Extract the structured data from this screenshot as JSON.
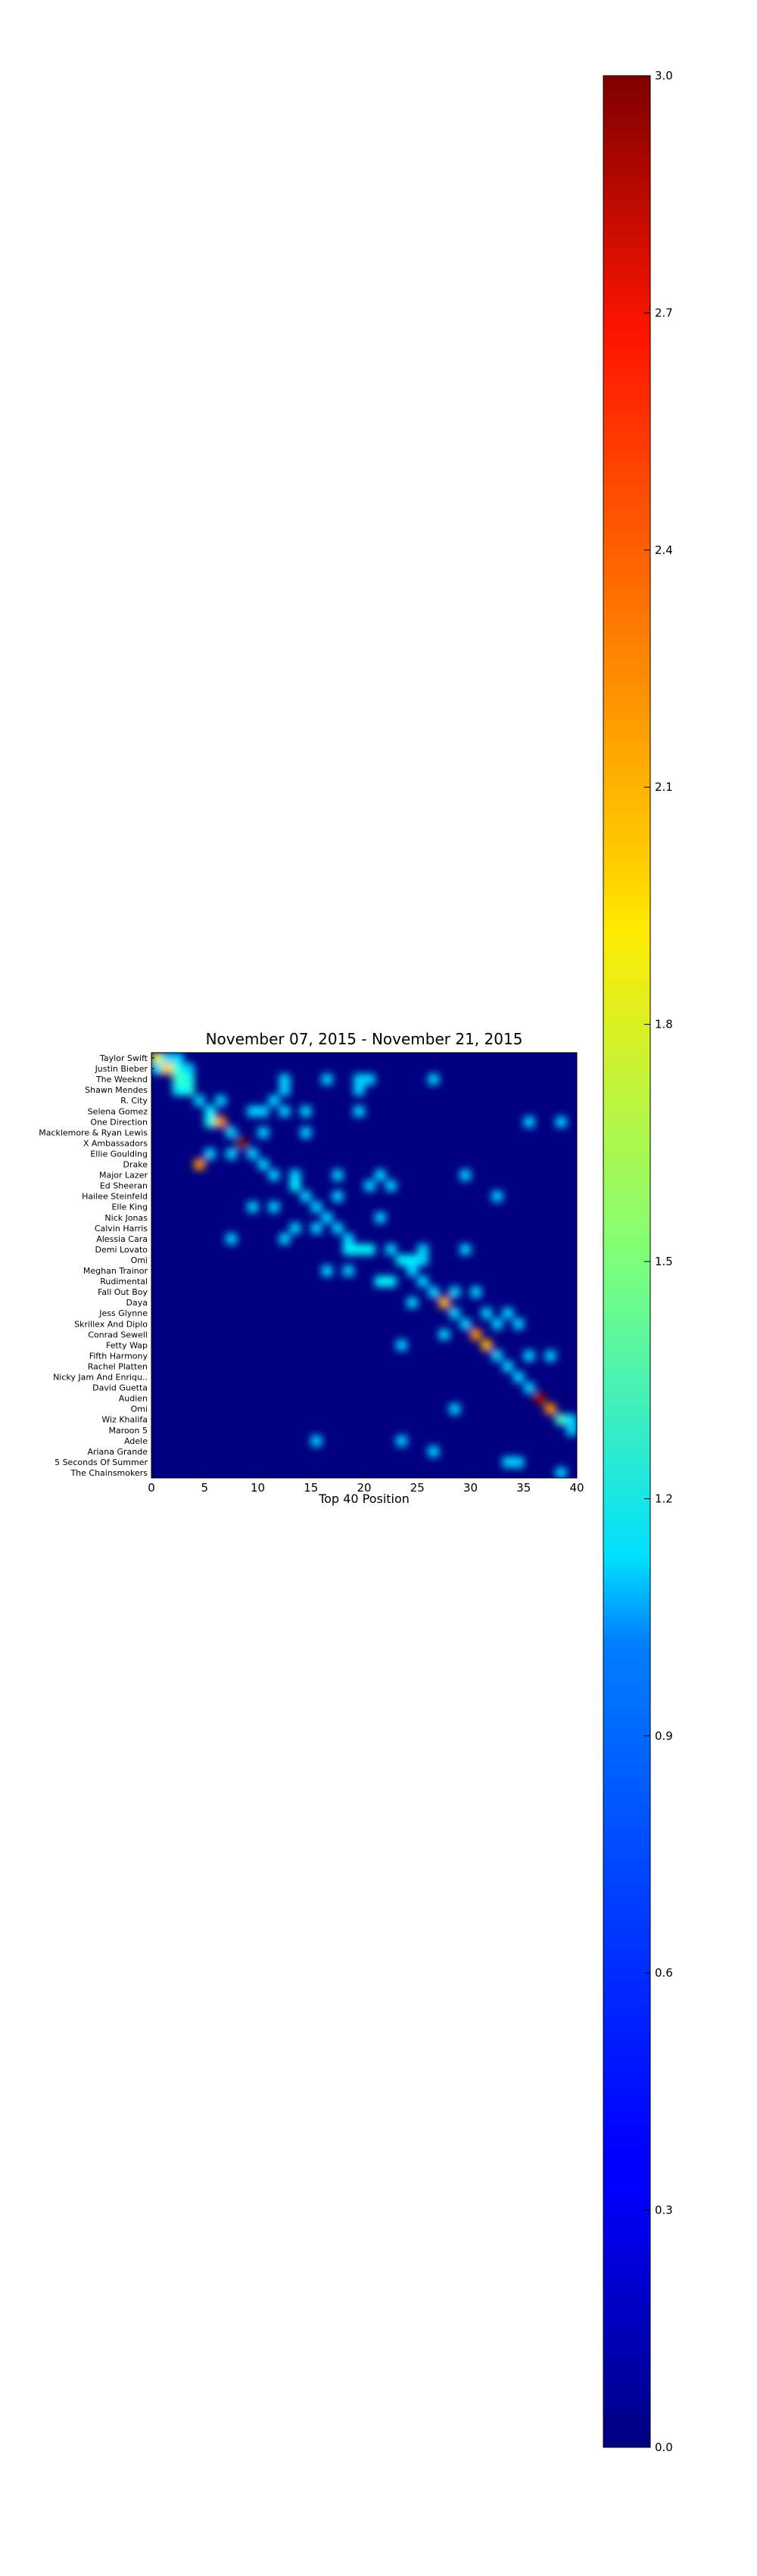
{
  "chart_data": {
    "type": "heatmap",
    "title": "November 07, 2015 - November 21, 2015",
    "xlabel": "Top 40 Position",
    "ylabel": "",
    "x_ticks": [
      0,
      5,
      10,
      15,
      20,
      25,
      30,
      35,
      40
    ],
    "xlim": [
      0,
      40
    ],
    "colorbar": {
      "ticks": [
        "0.0",
        "0.3",
        "0.6",
        "0.9",
        "1.2",
        "1.5",
        "1.8",
        "2.1",
        "2.4",
        "2.7",
        "3.0"
      ],
      "range": [
        0,
        3
      ],
      "colormap": "jet"
    },
    "artists": [
      "Taylor Swift",
      "Justin Bieber",
      "The Weeknd",
      "Shawn Mendes",
      "R. City",
      "Selena Gomez",
      "One Direction",
      "Macklemore & Ryan Lewis",
      "X Ambassadors",
      "Ellie Goulding",
      "Drake",
      "Major Lazer",
      "Ed Sheeran",
      "Hailee Steinfeld",
      "Elle King",
      "Nick Jonas",
      "Calvin Harris",
      "Alessia Cara",
      "Demi Lovato",
      "Omi",
      "Meghan Trainor",
      "Rudimental",
      "Fall Out Boy",
      "Daya",
      "Jess Glynne",
      "Skrillex And Diplo",
      "Conrad Sewell",
      "Fetty Wap",
      "Fifth Harmony",
      "Rachel Platten",
      "Nicky Jam And Enriqu..",
      "David Guetta",
      "Audien",
      "Omi",
      "Wiz Khalifa",
      "Maroon 5",
      "Adele",
      "Ariana Grande",
      "5 Seconds Of Summer",
      "The Chainsmokers"
    ],
    "cells": [
      [
        0,
        0,
        1.8
      ],
      [
        0,
        1,
        1.0
      ],
      [
        0,
        2,
        1.0
      ],
      [
        1,
        0,
        1.0
      ],
      [
        1,
        1,
        2.0
      ],
      [
        1,
        2,
        1.2
      ],
      [
        1,
        3,
        1.0
      ],
      [
        2,
        2,
        1.3
      ],
      [
        2,
        3,
        1.2
      ],
      [
        2,
        12,
        1.0
      ],
      [
        2,
        16,
        1.0
      ],
      [
        2,
        19,
        1.0
      ],
      [
        2,
        20,
        1.0
      ],
      [
        2,
        26,
        1.0
      ],
      [
        3,
        2,
        1.1
      ],
      [
        3,
        3,
        1.2
      ],
      [
        3,
        12,
        1.0
      ],
      [
        3,
        19,
        1.0
      ],
      [
        4,
        4,
        1.0
      ],
      [
        4,
        6,
        1.0
      ],
      [
        4,
        11,
        1.0
      ],
      [
        5,
        5,
        1.1
      ],
      [
        5,
        9,
        1.0
      ],
      [
        5,
        10,
        1.0
      ],
      [
        5,
        12,
        1.0
      ],
      [
        5,
        14,
        1.0
      ],
      [
        5,
        19,
        1.0
      ],
      [
        6,
        5,
        1.2
      ],
      [
        6,
        6,
        2.2
      ],
      [
        6,
        35,
        1.0
      ],
      [
        6,
        38,
        1.0
      ],
      [
        7,
        7,
        1.0
      ],
      [
        7,
        10,
        1.0
      ],
      [
        7,
        14,
        1.0
      ],
      [
        8,
        8,
        3.0
      ],
      [
        9,
        5,
        1.0
      ],
      [
        9,
        7,
        1.0
      ],
      [
        9,
        9,
        1.0
      ],
      [
        10,
        4,
        2.2
      ],
      [
        10,
        10,
        1.0
      ],
      [
        11,
        11,
        1.0
      ],
      [
        11,
        13,
        1.0
      ],
      [
        11,
        17,
        1.0
      ],
      [
        11,
        21,
        1.0
      ],
      [
        11,
        29,
        1.0
      ],
      [
        12,
        13,
        1.1
      ],
      [
        12,
        20,
        1.0
      ],
      [
        12,
        22,
        1.0
      ],
      [
        13,
        14,
        1.0
      ],
      [
        13,
        17,
        1.0
      ],
      [
        13,
        32,
        1.0
      ],
      [
        14,
        9,
        1.0
      ],
      [
        14,
        11,
        1.0
      ],
      [
        14,
        15,
        1.0
      ],
      [
        15,
        16,
        1.0
      ],
      [
        15,
        21,
        1.0
      ],
      [
        16,
        13,
        1.0
      ],
      [
        16,
        15,
        1.0
      ],
      [
        16,
        17,
        1.0
      ],
      [
        17,
        7,
        1.0
      ],
      [
        17,
        12,
        1.0
      ],
      [
        17,
        18,
        1.0
      ],
      [
        18,
        18,
        1.1
      ],
      [
        18,
        19,
        1.1
      ],
      [
        18,
        20,
        1.1
      ],
      [
        18,
        22,
        1.0
      ],
      [
        18,
        25,
        1.0
      ],
      [
        18,
        29,
        1.0
      ],
      [
        19,
        23,
        1.1
      ],
      [
        19,
        24,
        1.1
      ],
      [
        19,
        25,
        1.0
      ],
      [
        20,
        16,
        1.0
      ],
      [
        20,
        18,
        1.0
      ],
      [
        20,
        24,
        1.0
      ],
      [
        21,
        21,
        1.1
      ],
      [
        21,
        22,
        1.1
      ],
      [
        21,
        25,
        1.0
      ],
      [
        22,
        26,
        1.0
      ],
      [
        22,
        28,
        1.0
      ],
      [
        22,
        30,
        1.0
      ],
      [
        23,
        24,
        1.0
      ],
      [
        23,
        27,
        2.1
      ],
      [
        24,
        28,
        1.0
      ],
      [
        24,
        31,
        1.0
      ],
      [
        24,
        33,
        1.0
      ],
      [
        25,
        29,
        1.0
      ],
      [
        25,
        32,
        1.0
      ],
      [
        25,
        34,
        1.0
      ],
      [
        26,
        27,
        1.0
      ],
      [
        26,
        30,
        2.2
      ],
      [
        27,
        23,
        1.0
      ],
      [
        27,
        31,
        2.1
      ],
      [
        28,
        32,
        1.0
      ],
      [
        28,
        35,
        1.0
      ],
      [
        28,
        37,
        1.0
      ],
      [
        29,
        33,
        1.0
      ],
      [
        30,
        34,
        1.0
      ],
      [
        31,
        35,
        1.0
      ],
      [
        32,
        36,
        2.9
      ],
      [
        33,
        28,
        1.0
      ],
      [
        33,
        37,
        2.2
      ],
      [
        34,
        38,
        1.3
      ],
      [
        34,
        39,
        1.0
      ],
      [
        35,
        39,
        1.0
      ],
      [
        36,
        15,
        1.0
      ],
      [
        36,
        23,
        1.0
      ],
      [
        37,
        26,
        1.0
      ],
      [
        38,
        33,
        1.0
      ],
      [
        38,
        34,
        1.0
      ],
      [
        39,
        38,
        1.0
      ]
    ]
  }
}
